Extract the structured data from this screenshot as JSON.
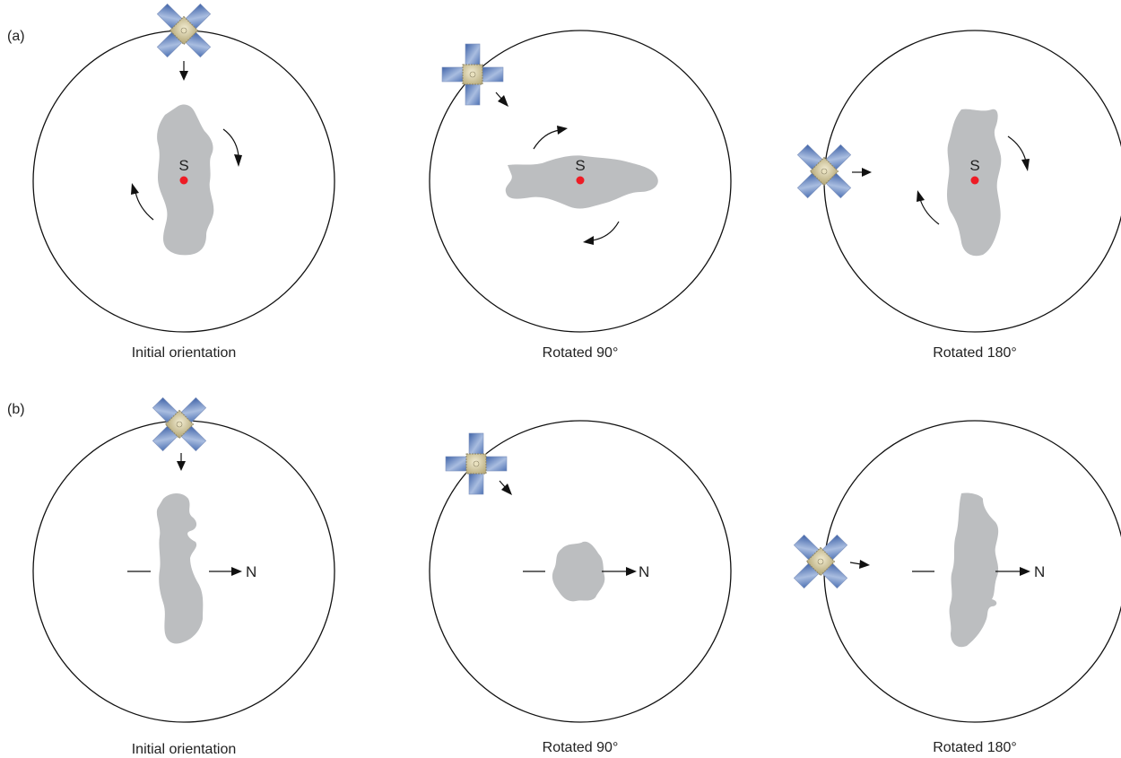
{
  "figure": {
    "rows": [
      {
        "label": "(a)",
        "center_marker_label": "S",
        "center_marker_color": "#ee1c25",
        "panels": [
          {
            "caption": "Initial orientation"
          },
          {
            "caption": "Rotated 90°"
          },
          {
            "caption": "Rotated 180°"
          }
        ]
      },
      {
        "label": "(b)",
        "direction_label": "N",
        "panels": [
          {
            "caption": "Initial orientation"
          },
          {
            "caption": "Rotated 90°"
          },
          {
            "caption": "Rotated 180°"
          }
        ]
      }
    ],
    "colors": {
      "body_fill": "#bcbec0",
      "orbit_stroke": "#111111",
      "solar_panel": "#5b7fb8",
      "satellite_bus": "#d8cfa8"
    },
    "icons": [
      "satellite-icon",
      "rotation-arrow-icon",
      "direction-arrow-icon"
    ]
  }
}
